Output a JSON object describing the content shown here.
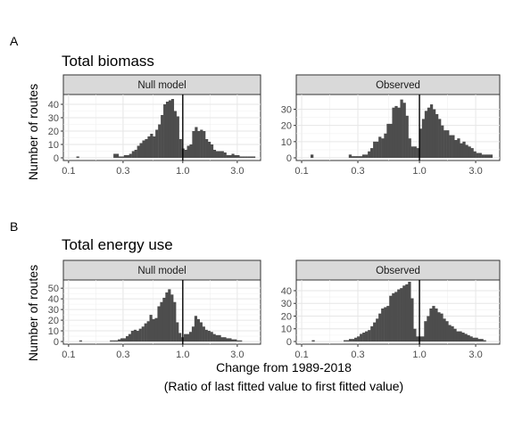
{
  "figure": {
    "xlabel_line1": "Change from 1989-2018",
    "xlabel_line2": "(Ratio of last fitted value to first fitted value)",
    "ylabel": "Number of routes"
  },
  "chart_data": [
    {
      "type": "bar",
      "panel_label": "A",
      "title": "Total biomass",
      "facets": [
        "Null model",
        "Observed"
      ],
      "x_scale": "log10",
      "xlim": [
        0.09,
        4.8
      ],
      "x_ticks": [
        0.1,
        0.3,
        1.0,
        3.0
      ],
      "x_tick_labels": [
        "0.1",
        "0.3",
        "1.0",
        "3.0"
      ],
      "reference_line_x": 1.0,
      "grid": true,
      "series": [
        {
          "name": "Null model",
          "ylim": [
            0,
            46
          ],
          "y_ticks": [
            0,
            10,
            20,
            30,
            40
          ],
          "bin_left_edges": [
            0.117,
            0.247,
            0.26,
            0.274,
            0.289,
            0.305,
            0.322,
            0.339,
            0.358,
            0.377,
            0.398,
            0.419,
            0.442,
            0.466,
            0.492,
            0.518,
            0.547,
            0.576,
            0.608,
            0.641,
            0.676,
            0.712,
            0.751,
            0.792,
            0.835,
            0.88,
            0.928,
            0.979,
            1.032,
            1.088,
            1.147,
            1.209,
            1.275,
            1.344,
            1.417,
            1.494,
            1.575,
            1.661,
            1.751,
            1.846,
            1.946,
            2.052,
            2.163,
            2.281,
            2.405,
            2.535,
            2.673,
            2.818,
            2.971,
            3.133,
            3.303,
            3.482,
            3.671,
            3.871,
            4.081
          ],
          "counts": [
            1,
            3,
            3,
            1,
            1,
            2,
            2,
            3,
            5,
            6,
            9,
            11,
            13,
            14,
            16,
            18,
            16,
            21,
            25,
            32,
            40,
            42,
            43,
            44,
            35,
            31,
            14,
            7,
            6,
            9,
            10,
            20,
            23,
            20,
            21,
            20,
            14,
            12,
            10,
            6,
            5,
            5,
            5,
            4,
            2,
            2,
            3,
            2,
            2,
            1,
            1,
            1,
            1,
            1,
            1
          ]
        },
        {
          "name": "Observed",
          "ylim": [
            0,
            38
          ],
          "y_ticks": [
            0,
            10,
            20,
            30
          ],
          "bin_left_edges": [
            0.119,
            0.251,
            0.265,
            0.279,
            0.294,
            0.31,
            0.327,
            0.345,
            0.364,
            0.383,
            0.404,
            0.426,
            0.449,
            0.474,
            0.5,
            0.527,
            0.555,
            0.586,
            0.617,
            0.651,
            0.686,
            0.724,
            0.763,
            0.804,
            0.848,
            0.894,
            0.943,
            0.995,
            1.049,
            1.106,
            1.166,
            1.23,
            1.297,
            1.367,
            1.442,
            1.52,
            1.603,
            1.69,
            1.782,
            1.879,
            1.981,
            2.089,
            2.203,
            2.323,
            2.449,
            2.583,
            2.723,
            2.871,
            3.028,
            3.192,
            3.366,
            3.55,
            3.743,
            3.947
          ],
          "counts": [
            2,
            2,
            1,
            1,
            1,
            1,
            2,
            2,
            4,
            6,
            10,
            10,
            13,
            12,
            15,
            21,
            21,
            31,
            32,
            31,
            36,
            34,
            26,
            12,
            7,
            7,
            6,
            18,
            24,
            29,
            31,
            33,
            30,
            27,
            24,
            20,
            17,
            17,
            14,
            14,
            11,
            12,
            9,
            10,
            8,
            7,
            6,
            4,
            3,
            3,
            2,
            2,
            2,
            2
          ]
        }
      ]
    },
    {
      "type": "bar",
      "panel_label": "B",
      "title": "Total energy use",
      "facets": [
        "Null model",
        "Observed"
      ],
      "x_scale": "log10",
      "xlim": [
        0.09,
        4.8
      ],
      "x_ticks": [
        0.1,
        0.3,
        1.0,
        3.0
      ],
      "x_tick_labels": [
        "0.1",
        "0.3",
        "1.0",
        "3.0"
      ],
      "reference_line_x": 1.0,
      "grid": true,
      "series": [
        {
          "name": "Null model",
          "ylim": [
            0,
            56
          ],
          "y_ticks": [
            0,
            10,
            20,
            30,
            40,
            50
          ],
          "bin_left_edges": [
            0.124,
            0.23,
            0.243,
            0.256,
            0.27,
            0.285,
            0.3,
            0.317,
            0.334,
            0.352,
            0.372,
            0.392,
            0.413,
            0.436,
            0.46,
            0.485,
            0.511,
            0.539,
            0.569,
            0.6,
            0.633,
            0.667,
            0.704,
            0.742,
            0.783,
            0.826,
            0.871,
            0.918,
            0.969,
            1.022,
            1.078,
            1.137,
            1.199,
            1.264,
            1.333,
            1.406,
            1.483,
            1.564,
            1.65,
            1.74,
            1.835,
            1.936,
            2.042,
            2.153,
            2.271,
            2.395,
            2.526,
            2.664,
            2.809,
            2.963,
            3.125
          ],
          "counts": [
            1,
            1,
            1,
            1,
            2,
            3,
            3,
            5,
            7,
            10,
            11,
            10,
            12,
            14,
            17,
            19,
            25,
            21,
            22,
            33,
            37,
            41,
            46,
            49,
            44,
            37,
            18,
            8,
            4,
            7,
            7,
            9,
            14,
            24,
            21,
            18,
            14,
            11,
            10,
            9,
            7,
            6,
            6,
            4,
            4,
            3,
            3,
            2,
            2,
            1,
            1
          ]
        },
        {
          "name": "Observed",
          "ylim": [
            0,
            47
          ],
          "y_ticks": [
            0,
            10,
            20,
            30,
            40
          ],
          "bin_left_edges": [
            0.122,
            0.227,
            0.239,
            0.252,
            0.266,
            0.28,
            0.295,
            0.311,
            0.328,
            0.345,
            0.364,
            0.384,
            0.404,
            0.426,
            0.449,
            0.473,
            0.499,
            0.526,
            0.554,
            0.584,
            0.615,
            0.648,
            0.683,
            0.72,
            0.759,
            0.8,
            0.843,
            0.888,
            0.936,
            0.986,
            1.04,
            1.095,
            1.154,
            1.217,
            1.282,
            1.351,
            1.424,
            1.501,
            1.582,
            1.667,
            1.757,
            1.851,
            1.951,
            2.056,
            2.167,
            2.284,
            2.407,
            2.536,
            2.673,
            2.817,
            2.969,
            3.129,
            3.297,
            3.474
          ],
          "counts": [
            1,
            1,
            1,
            2,
            2,
            3,
            4,
            6,
            7,
            8,
            9,
            12,
            15,
            18,
            22,
            26,
            27,
            28,
            36,
            38,
            39,
            41,
            42,
            44,
            45,
            47,
            34,
            10,
            4,
            4,
            4,
            16,
            20,
            26,
            28,
            26,
            23,
            22,
            18,
            16,
            13,
            12,
            10,
            8,
            8,
            7,
            6,
            5,
            4,
            3,
            3,
            2,
            2,
            1
          ]
        }
      ]
    }
  ]
}
